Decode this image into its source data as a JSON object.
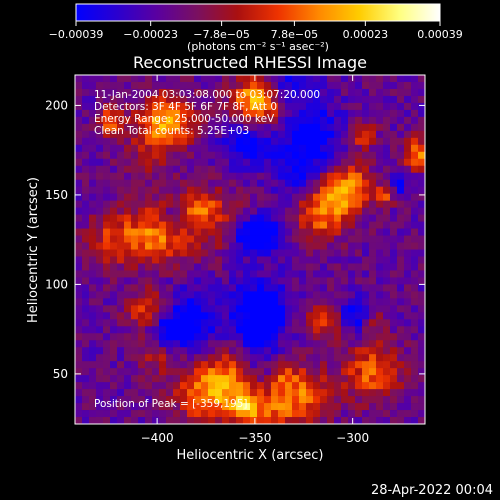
{
  "chart_data": {
    "type": "heatmap",
    "title": "Reconstructed RHESSI Image",
    "xlabel": "Heliocentric X (arcsec)",
    "ylabel": "Heliocentric Y (arcsec)",
    "xlim": [
      -442,
      -263
    ],
    "ylim": [
      22,
      217
    ],
    "x_ticks": [
      {
        "value": -400,
        "label": "−400"
      },
      {
        "value": -350,
        "label": "−350"
      },
      {
        "value": -300,
        "label": "−300"
      }
    ],
    "y_ticks": [
      {
        "value": 50,
        "label": "50"
      },
      {
        "value": 100,
        "label": "100"
      },
      {
        "value": 150,
        "label": "150"
      },
      {
        "value": 200,
        "label": "200"
      }
    ],
    "colorbar": {
      "min": -0.00039,
      "max": 0.00039,
      "ticks": [
        {
          "value": -0.00039,
          "label": "−0.00039"
        },
        {
          "value": -0.00023,
          "label": "−0.00023"
        },
        {
          "value": -7.8e-05,
          "label": "−7.8e−05"
        },
        {
          "value": 7.8e-05,
          "label": "7.8e−05"
        },
        {
          "value": 0.00023,
          "label": "0.00023"
        },
        {
          "value": 0.00039,
          "label": "0.00039"
        }
      ],
      "units_label": "(photons cm⁻² s⁻¹ asec⁻²)",
      "colors": [
        "#0000ff",
        "#2a00d0",
        "#5a00a0",
        "#7a1060",
        "#aa1010",
        "#ee3300",
        "#ff8800",
        "#ffcc00",
        "#ffff80",
        "#ffffff"
      ]
    },
    "annotations": {
      "time_range": "11-Jan-2004 03:03:08.000 to 03:07:20.000",
      "detectors": "Detectors: 3F 4F 5F 6F 7F 8F, Att 0",
      "energy_range": "Energy Range: 25.000-50.000 keV",
      "clean_counts": "Clean     Total counts: 5.25E+03",
      "peak_position": "Position of Peak = [-359,195]"
    },
    "peak": {
      "x": -359,
      "y": 195
    }
  },
  "timestamp": "28-Apr-2022 00:04"
}
